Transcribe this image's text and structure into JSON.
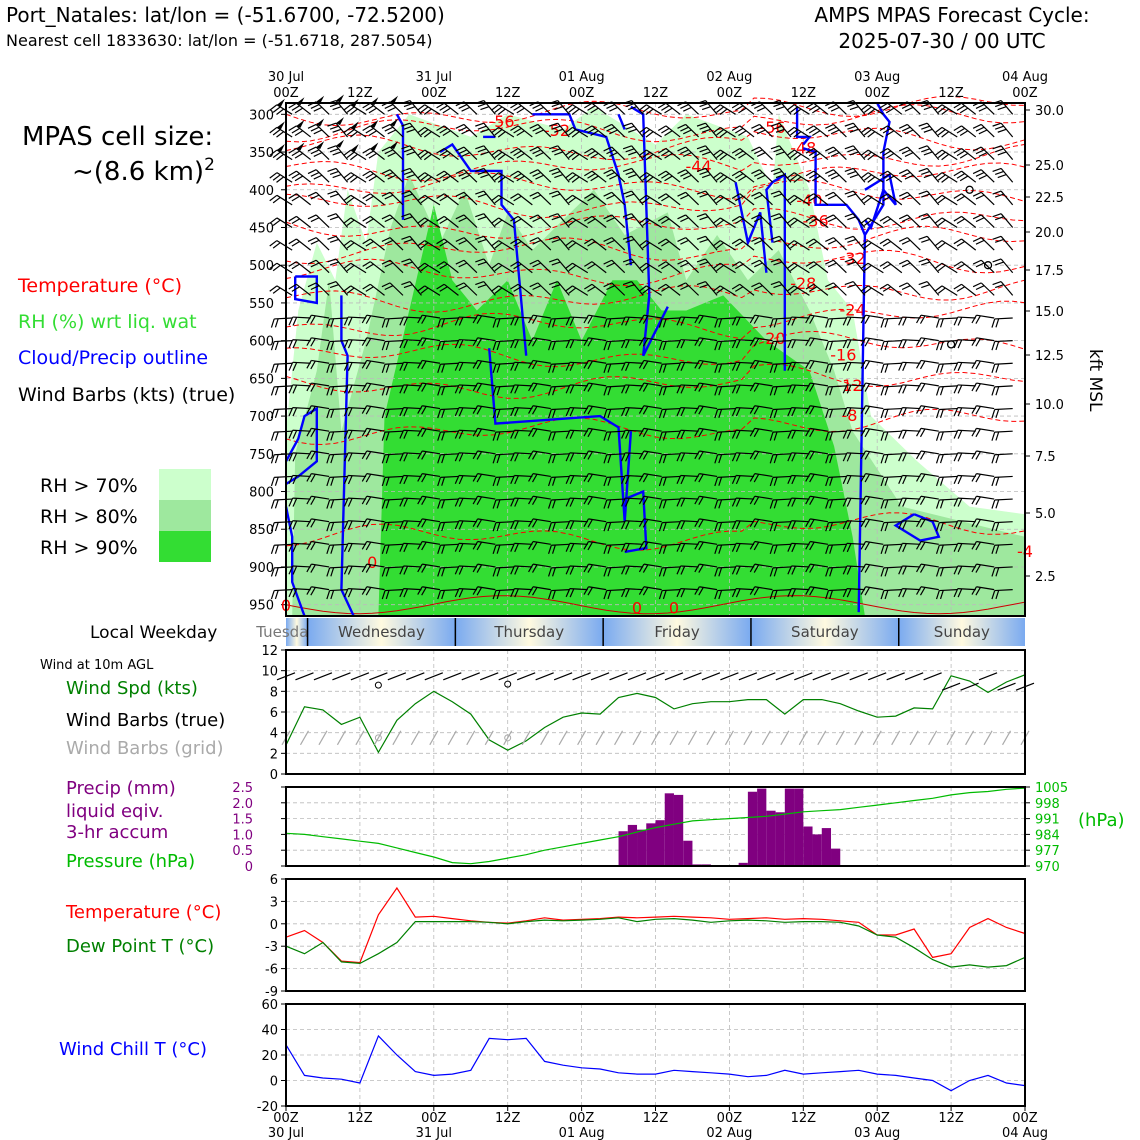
{
  "header": {
    "title_left": "Port_Natales: lat/lon = (-51.6700, -72.5200)",
    "subtitle_left": "Nearest cell 1833630: lat/lon = (-51.6718, 287.5054)",
    "title_right_1": "AMPS MPAS Forecast Cycle:",
    "title_right_2": "2025-07-30 / 00 UTC"
  },
  "left_legend": {
    "cell_size_1": "MPAS cell size:",
    "cell_size_2": "~(8.6 km)",
    "cell_size_sup": "2",
    "temp": "Temperature (°C)",
    "rh": "RH (%) wrt liq. wat",
    "cloud": "Cloud/Precip outline",
    "barbs": "Wind Barbs (kts) (true)",
    "rh70": "RH > 70%",
    "rh80": "RH > 80%",
    "rh90": "RH > 90%",
    "local_weekday": "Local Weekday",
    "wind10m": "Wind at 10m AGL",
    "wspd": "Wind Spd (kts)",
    "wbarbs_true": "Wind Barbs (true)",
    "wbarbs_grid": "Wind Barbs (grid)",
    "precip_1": "Precip (mm)",
    "precip_2": "liquid eqiv.",
    "precip_3": "3-hr accum",
    "pressure": "Pressure (hPa)",
    "temp2": "Temperature (°C)",
    "dewpoint": "Dew Point T (°C)",
    "windchill": "Wind Chill T (°C)"
  },
  "colors": {
    "temp": "#ff0000",
    "rh": "#33dd33",
    "cloud": "#0000ff",
    "precip": "#800080",
    "pressure": "#00bb00",
    "dewpoint": "#008000",
    "windchill": "#0000ff",
    "rh70": "#ccffcc",
    "rh80": "#9ee89e",
    "rh90": "#33dd33"
  },
  "time_axis": {
    "top_dates": [
      "30 Jul",
      "",
      "31 Jul",
      "",
      "01 Aug",
      "",
      "02 Aug",
      "",
      "03 Aug",
      "",
      "04 Aug"
    ],
    "hours": [
      "00Z",
      "12Z",
      "00Z",
      "12Z",
      "00Z",
      "12Z",
      "00Z",
      "12Z",
      "00Z",
      "12Z",
      "00Z"
    ]
  },
  "weekdays": [
    "Tuesday",
    "Wednesday",
    "Thursday",
    "Friday",
    "Saturday",
    "Sunday"
  ],
  "chart_data": [
    {
      "type": "heatmap",
      "name": "cross-section",
      "y_pressure_ticks": [
        "300",
        "350",
        "400",
        "450",
        "500",
        "550",
        "600",
        "650",
        "700",
        "750",
        "800",
        "850",
        "900",
        "950"
      ],
      "y_kft_ticks": [
        "30.0",
        "25.0",
        "22.5",
        "20.0",
        "17.5",
        "15.0",
        "12.5",
        "10.0",
        "7.5",
        "5.0",
        "2.5"
      ],
      "ylabel_right": "kft MSL",
      "temp_contour_labels": [
        "-56",
        "-56",
        "-52",
        "-48",
        "-44",
        "-40",
        "-36",
        "-32",
        "-28",
        "-24",
        "-20",
        "-16",
        "-12",
        "-8",
        "-4",
        "0",
        "0",
        "0",
        "0"
      ]
    },
    {
      "type": "line",
      "name": "wind speed",
      "ylim": [
        0,
        12
      ],
      "yticks": [
        "0",
        "2",
        "4",
        "6",
        "8",
        "10",
        "12"
      ],
      "x_hours": [
        0,
        6,
        12,
        18,
        24,
        30,
        36,
        42,
        48,
        54,
        60,
        66,
        72,
        78,
        84,
        90,
        96,
        102,
        108,
        114,
        120,
        126,
        132,
        138,
        144,
        150,
        156,
        162,
        168,
        174,
        180,
        186,
        192,
        198,
        204,
        210,
        216,
        222,
        228,
        234,
        240
      ],
      "values": [
        2.8,
        6.5,
        6.2,
        4.8,
        5.5,
        2.1,
        5.2,
        6.8,
        8.0,
        7.0,
        5.8,
        3.3,
        2.3,
        3.2,
        4.5,
        5.5,
        5.9,
        5.8,
        7.4,
        7.8,
        7.4,
        6.3,
        6.8,
        7.0,
        7.0,
        7.2,
        7.2,
        5.8,
        7.2,
        7.2,
        6.8,
        6.1,
        5.5,
        5.6,
        6.4,
        6.3,
        9.5,
        9.0,
        7.9,
        8.9,
        9.6
      ]
    },
    {
      "type": "bar",
      "name": "precip",
      "ylim": [
        0,
        2.5
      ],
      "yticks": [
        "0",
        "0.5",
        "1.0",
        "1.5",
        "2.0",
        "2.5"
      ],
      "x_hours": [
        0,
        3,
        6,
        9,
        12,
        15,
        18,
        21,
        24,
        27,
        30,
        33,
        36,
        39,
        42,
        45,
        48,
        51,
        54,
        57,
        60,
        63,
        66,
        69,
        72,
        75,
        78,
        81,
        84,
        87,
        90,
        93,
        96,
        99,
        102,
        105,
        108,
        111,
        114,
        117,
        120,
        123,
        126,
        129,
        132,
        135,
        138,
        141,
        144,
        147,
        150,
        153,
        156,
        159,
        162,
        165,
        168,
        171,
        174,
        177,
        180
      ],
      "values": [
        0,
        0,
        0,
        0,
        0,
        0,
        0,
        0,
        0,
        0,
        0,
        0,
        0,
        0,
        0,
        0,
        0,
        0,
        0,
        0,
        0,
        0,
        0,
        0,
        0,
        0,
        0,
        0,
        0,
        0,
        0,
        0,
        0,
        0,
        0,
        0,
        1.1,
        1.3,
        1.15,
        1.35,
        1.45,
        2.3,
        2.25,
        0.8,
        0.05,
        0.05,
        0,
        0,
        0,
        0.1,
        2.35,
        2.45,
        1.75,
        1.7,
        2.45,
        2.45,
        1.25,
        1.0,
        1.2,
        0.55,
        0
      ],
      "note_bars": "3-hr accum"
    },
    {
      "type": "line",
      "name": "pressure",
      "yticks_right": [
        "970",
        "977",
        "984",
        "991",
        "998",
        "1005"
      ],
      "ylim": [
        970,
        1005
      ],
      "x_hours": [
        0,
        6,
        12,
        18,
        24,
        30,
        36,
        42,
        48,
        54,
        60,
        66,
        72,
        78,
        84,
        90,
        96,
        102,
        108,
        114,
        120,
        126,
        132,
        138,
        144,
        150,
        156,
        162,
        168,
        174,
        180,
        186,
        192,
        198,
        204,
        210,
        216,
        222,
        228,
        234,
        240
      ],
      "values": [
        984.5,
        984,
        983,
        982,
        981,
        980,
        978,
        976,
        974,
        971.5,
        971,
        972,
        973.5,
        975,
        977,
        978.5,
        980,
        981.5,
        983,
        985,
        987,
        988.5,
        990,
        990.5,
        991,
        991.5,
        992,
        993,
        994,
        994.5,
        995,
        996,
        997,
        998,
        999,
        1000,
        1001.5,
        1002.5,
        1003,
        1004,
        1004.5
      ]
    },
    {
      "type": "line",
      "name": "temperature / dewpoint",
      "ylim": [
        -9,
        6
      ],
      "yticks": [
        "-9",
        "-6",
        "-3",
        "0",
        "3",
        "6"
      ],
      "x_hours": [
        0,
        6,
        12,
        18,
        24,
        30,
        36,
        42,
        48,
        54,
        60,
        66,
        72,
        78,
        84,
        90,
        96,
        102,
        108,
        114,
        120,
        126,
        132,
        138,
        144,
        150,
        156,
        162,
        168,
        174,
        180,
        186,
        192,
        198,
        204,
        210,
        216,
        222,
        228,
        234,
        240
      ],
      "temp": [
        -1.8,
        -0.9,
        -2.5,
        -5.0,
        -5.2,
        1.2,
        4.8,
        0.9,
        1.0,
        0.7,
        0.4,
        0.2,
        0.1,
        0.4,
        0.8,
        0.5,
        0.6,
        0.7,
        0.9,
        0.8,
        0.9,
        1.0,
        0.9,
        0.8,
        0.6,
        0.7,
        0.8,
        0.6,
        0.7,
        0.6,
        0.4,
        0.2,
        -1.5,
        -1.5,
        -0.7,
        -4.5,
        -4.0,
        -0.5,
        0.7,
        -0.5,
        -1.3
      ],
      "dewpoint": [
        -3.0,
        -4.0,
        -2.5,
        -5.1,
        -5.3,
        -4.0,
        -2.5,
        0.3,
        0.3,
        0.3,
        0.3,
        0.2,
        0.0,
        0.3,
        0.5,
        0.4,
        0.5,
        0.6,
        0.8,
        0.3,
        0.6,
        0.7,
        0.5,
        0.2,
        0.4,
        0.5,
        0.4,
        0.2,
        0.3,
        0.3,
        0.2,
        -0.3,
        -1.5,
        -1.8,
        -3.2,
        -4.8,
        -5.8,
        -5.5,
        -5.8,
        -5.6,
        -4.5
      ]
    },
    {
      "type": "line",
      "name": "wind chill",
      "ylim": [
        -20,
        60
      ],
      "yticks": [
        "-20",
        "0",
        "20",
        "40",
        "60"
      ],
      "x_hours": [
        0,
        6,
        12,
        18,
        24,
        30,
        36,
        42,
        48,
        54,
        60,
        66,
        72,
        78,
        84,
        90,
        96,
        102,
        108,
        114,
        120,
        126,
        132,
        138,
        144,
        150,
        156,
        162,
        168,
        174,
        180,
        186,
        192,
        198,
        204,
        210,
        216,
        222,
        228,
        234,
        240
      ],
      "values": [
        28,
        4,
        2,
        1,
        -2,
        35,
        20,
        7,
        4,
        5,
        8,
        33,
        32,
        33,
        15,
        12,
        10,
        9,
        6,
        5,
        5,
        8,
        7,
        6,
        5,
        3,
        4,
        8,
        5,
        6,
        7,
        8,
        5,
        4,
        2,
        0,
        -8,
        0,
        4,
        -2,
        -4
      ]
    }
  ]
}
